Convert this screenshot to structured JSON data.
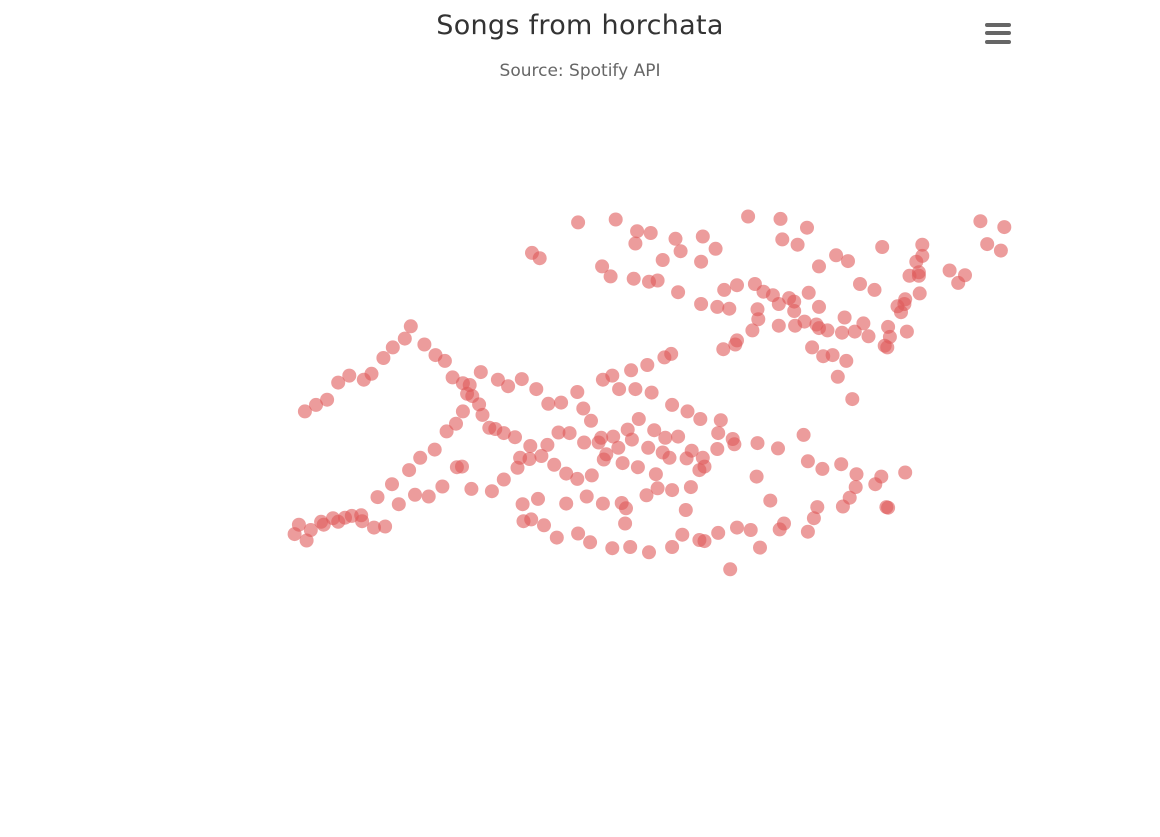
{
  "title": "Songs from horchata",
  "subtitle": "Source: Spotify API",
  "menu": {
    "icon": "hamburger-menu-icon"
  },
  "colors": {
    "point_fill": "#e05a5a",
    "point_opacity": 0.6,
    "title": "#333333",
    "subtitle": "#666666",
    "menu_icon": "#666666"
  },
  "chart_data": {
    "type": "scatter",
    "title": "Songs from horchata",
    "subtitle": "Source: Spotify API",
    "xlabel": "",
    "ylabel": "",
    "xlim": [
      0,
      100
    ],
    "ylim": [
      0,
      100
    ],
    "grid": false,
    "legend": "none",
    "series": [
      {
        "points": [
          [
            73.6,
            99.0
          ],
          [
            69.8,
            99.4
          ],
          [
            76.7,
            97.5
          ],
          [
            56.8,
            96.9
          ],
          [
            54.3,
            98.9
          ],
          [
            58.4,
            96.6
          ],
          [
            61.3,
            95.6
          ],
          [
            61.9,
            93.5
          ],
          [
            66.0,
            93.9
          ],
          [
            64.3,
            91.7
          ],
          [
            59.8,
            92.0
          ],
          [
            59.2,
            88.5
          ],
          [
            61.6,
            86.5
          ],
          [
            64.3,
            84.5
          ],
          [
            66.2,
            84.0
          ],
          [
            67.6,
            83.7
          ],
          [
            71.0,
            81.9
          ],
          [
            75.3,
            80.8
          ],
          [
            78.1,
            80.4
          ],
          [
            79.1,
            80.0
          ],
          [
            80.8,
            79.6
          ],
          [
            82.3,
            79.8
          ],
          [
            83.9,
            79.0
          ],
          [
            85.8,
            77.4
          ],
          [
            86.1,
            77.1
          ],
          [
            86.4,
            78.9
          ],
          [
            86.2,
            80.6
          ],
          [
            83.3,
            81.2
          ],
          [
            81.1,
            82.2
          ],
          [
            77.8,
            81.0
          ],
          [
            76.4,
            81.5
          ],
          [
            77.3,
            77.1
          ],
          [
            78.6,
            75.6
          ],
          [
            79.7,
            75.8
          ],
          [
            81.3,
            74.8
          ],
          [
            80.3,
            72.1
          ],
          [
            82.0,
            68.3
          ],
          [
            88.4,
            79.8
          ],
          [
            87.7,
            83.1
          ],
          [
            88.1,
            84.5
          ],
          [
            87.3,
            84.1
          ],
          [
            88.2,
            85.3
          ],
          [
            89.9,
            86.3
          ],
          [
            89.8,
            89.3
          ],
          [
            90.2,
            92.7
          ],
          [
            89.5,
            91.7
          ],
          [
            89.8,
            89.9
          ],
          [
            94.4,
            88.1
          ],
          [
            95.2,
            89.4
          ],
          [
            93.4,
            90.2
          ],
          [
            97.8,
            94.7
          ],
          [
            99.4,
            93.6
          ],
          [
            99.8,
            97.6
          ],
          [
            97.0,
            98.6
          ],
          [
            85.5,
            94.2
          ],
          [
            88.7,
            89.3
          ],
          [
            80.1,
            92.8
          ],
          [
            78.1,
            90.9
          ],
          [
            81.5,
            91.8
          ],
          [
            82.9,
            87.9
          ],
          [
            84.6,
            86.9
          ],
          [
            76.9,
            86.4
          ],
          [
            75.2,
            84.9
          ],
          [
            75.2,
            83.3
          ],
          [
            90.2,
            94.6
          ],
          [
            75.6,
            94.6
          ],
          [
            73.8,
            95.5
          ],
          [
            49.9,
            98.4
          ],
          [
            56.6,
            94.8
          ],
          [
            44.5,
            93.2
          ],
          [
            45.4,
            92.3
          ],
          [
            64.5,
            96.0
          ],
          [
            52.7,
            90.9
          ],
          [
            53.7,
            89.2
          ],
          [
            56.4,
            88.8
          ],
          [
            58.2,
            88.3
          ],
          [
            68.5,
            87.7
          ],
          [
            67.0,
            86.9
          ],
          [
            70.6,
            87.9
          ],
          [
            71.6,
            86.6
          ],
          [
            72.7,
            86.0
          ],
          [
            73.4,
            84.5
          ],
          [
            74.6,
            85.5
          ],
          [
            78.1,
            84.0
          ],
          [
            70.9,
            83.6
          ],
          [
            73.4,
            80.8
          ],
          [
            70.3,
            80.0
          ],
          [
            68.5,
            78.3
          ],
          [
            68.3,
            77.6
          ],
          [
            66.9,
            76.8
          ],
          [
            60.8,
            76.0
          ],
          [
            60.0,
            75.4
          ],
          [
            58.0,
            74.1
          ],
          [
            56.1,
            73.2
          ],
          [
            53.9,
            72.3
          ],
          [
            52.8,
            71.6
          ],
          [
            54.7,
            70.0
          ],
          [
            56.6,
            70.0
          ],
          [
            58.5,
            69.4
          ],
          [
            60.9,
            67.3
          ],
          [
            62.7,
            66.2
          ],
          [
            64.2,
            64.9
          ],
          [
            66.6,
            64.7
          ],
          [
            66.3,
            62.5
          ],
          [
            68.0,
            61.5
          ],
          [
            70.9,
            60.8
          ],
          [
            73.3,
            59.9
          ],
          [
            76.3,
            62.2
          ],
          [
            76.8,
            57.7
          ],
          [
            78.5,
            56.4
          ],
          [
            80.7,
            57.2
          ],
          [
            82.5,
            55.5
          ],
          [
            85.4,
            55.1
          ],
          [
            84.7,
            53.8
          ],
          [
            86.0,
            49.9
          ],
          [
            86.2,
            49.8
          ],
          [
            88.2,
            55.8
          ],
          [
            82.4,
            53.3
          ],
          [
            81.7,
            51.5
          ],
          [
            80.9,
            50.0
          ],
          [
            77.9,
            49.9
          ],
          [
            77.5,
            48.0
          ],
          [
            76.8,
            45.7
          ],
          [
            73.5,
            46.1
          ],
          [
            70.1,
            46.0
          ],
          [
            68.5,
            46.4
          ],
          [
            66.3,
            45.5
          ],
          [
            64.1,
            44.3
          ],
          [
            62.1,
            45.2
          ],
          [
            60.9,
            43.1
          ],
          [
            58.2,
            42.2
          ],
          [
            56.0,
            43.1
          ],
          [
            53.9,
            42.9
          ],
          [
            51.3,
            43.9
          ],
          [
            49.9,
            45.4
          ],
          [
            47.4,
            44.7
          ],
          [
            45.9,
            46.8
          ],
          [
            44.4,
            47.8
          ],
          [
            43.5,
            47.5
          ],
          [
            43.4,
            50.4
          ],
          [
            45.2,
            51.3
          ],
          [
            48.5,
            50.5
          ],
          [
            50.9,
            51.7
          ],
          [
            52.8,
            50.5
          ],
          [
            55.0,
            50.6
          ],
          [
            55.5,
            49.7
          ],
          [
            55.4,
            47.1
          ],
          [
            57.9,
            51.9
          ],
          [
            59.2,
            53.1
          ],
          [
            60.9,
            52.8
          ],
          [
            63.1,
            53.3
          ],
          [
            64.1,
            56.2
          ],
          [
            64.5,
            58.3
          ],
          [
            66.2,
            59.8
          ],
          [
            68.2,
            60.6
          ],
          [
            70.8,
            55.1
          ],
          [
            72.4,
            51.0
          ],
          [
            74.0,
            47.1
          ],
          [
            71.2,
            43.0
          ],
          [
            67.7,
            39.3
          ],
          [
            64.7,
            44.1
          ],
          [
            62.5,
            49.4
          ],
          [
            59.0,
            55.5
          ],
          [
            56.9,
            56.7
          ],
          [
            55.1,
            57.4
          ],
          [
            52.9,
            58.0
          ],
          [
            52.3,
            60.9
          ],
          [
            51.4,
            64.6
          ],
          [
            50.5,
            66.7
          ],
          [
            49.8,
            69.5
          ],
          [
            47.9,
            67.7
          ],
          [
            46.4,
            67.5
          ],
          [
            45.0,
            70.0
          ],
          [
            43.3,
            71.7
          ],
          [
            41.7,
            70.5
          ],
          [
            40.5,
            71.6
          ],
          [
            38.5,
            72.9
          ],
          [
            37.2,
            70.7
          ],
          [
            37.5,
            68.8
          ],
          [
            36.4,
            66.2
          ],
          [
            35.6,
            64.1
          ],
          [
            34.5,
            62.8
          ],
          [
            33.1,
            59.7
          ],
          [
            31.4,
            58.3
          ],
          [
            30.1,
            56.2
          ],
          [
            28.1,
            53.8
          ],
          [
            26.4,
            51.6
          ],
          [
            24.5,
            48.5
          ],
          [
            22.6,
            48.1
          ],
          [
            21.2,
            48.0
          ],
          [
            19.8,
            47.4
          ],
          [
            18.6,
            46.0
          ],
          [
            17.2,
            46.9
          ],
          [
            16.7,
            45.3
          ],
          [
            18.1,
            44.2
          ],
          [
            20.1,
            46.9
          ],
          [
            21.8,
            47.4
          ],
          [
            23.4,
            48.4
          ],
          [
            24.6,
            47.5
          ],
          [
            26.0,
            46.4
          ],
          [
            27.3,
            46.6
          ],
          [
            28.9,
            50.4
          ],
          [
            30.8,
            52.0
          ],
          [
            32.4,
            51.7
          ],
          [
            34.0,
            53.4
          ],
          [
            35.7,
            56.7
          ],
          [
            36.3,
            56.8
          ],
          [
            37.4,
            53.0
          ],
          [
            39.8,
            52.6
          ],
          [
            41.2,
            54.6
          ],
          [
            42.8,
            56.6
          ],
          [
            43.1,
            58.3
          ],
          [
            44.3,
            60.3
          ],
          [
            46.3,
            60.5
          ],
          [
            47.6,
            62.6
          ],
          [
            48.9,
            62.5
          ],
          [
            50.6,
            60.9
          ],
          [
            52.6,
            61.7
          ],
          [
            54.0,
            61.9
          ],
          [
            55.7,
            63.1
          ],
          [
            57.0,
            64.9
          ],
          [
            58.8,
            63.0
          ],
          [
            60.1,
            61.7
          ],
          [
            61.6,
            61.9
          ],
          [
            63.2,
            59.5
          ],
          [
            64.7,
            56.8
          ],
          [
            62.6,
            58.2
          ],
          [
            60.6,
            58.3
          ],
          [
            59.8,
            59.2
          ],
          [
            58.1,
            60.0
          ],
          [
            56.2,
            61.4
          ],
          [
            54.6,
            60.0
          ],
          [
            53.2,
            58.9
          ],
          [
            51.5,
            55.3
          ],
          [
            49.8,
            54.7
          ],
          [
            48.5,
            55.6
          ],
          [
            47.1,
            57.1
          ],
          [
            45.6,
            58.6
          ],
          [
            44.2,
            58.1
          ],
          [
            42.5,
            61.8
          ],
          [
            41.2,
            62.5
          ],
          [
            40.2,
            63.2
          ],
          [
            39.5,
            63.4
          ],
          [
            38.7,
            65.6
          ],
          [
            38.3,
            67.4
          ],
          [
            36.9,
            69.2
          ],
          [
            36.4,
            71.0
          ],
          [
            35.2,
            72.0
          ],
          [
            34.3,
            74.8
          ],
          [
            33.2,
            75.8
          ],
          [
            31.9,
            77.6
          ],
          [
            30.3,
            80.7
          ],
          [
            29.6,
            78.6
          ],
          [
            28.2,
            77.1
          ],
          [
            27.1,
            75.3
          ],
          [
            25.7,
            72.6
          ],
          [
            24.8,
            71.6
          ],
          [
            23.1,
            72.3
          ],
          [
            21.8,
            71.1
          ],
          [
            20.5,
            68.2
          ],
          [
            19.2,
            67.3
          ],
          [
            17.9,
            66.2
          ]
        ]
      }
    ]
  }
}
